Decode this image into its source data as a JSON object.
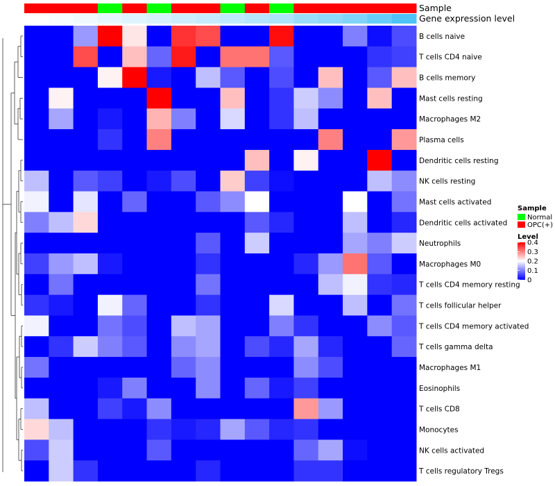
{
  "chart_data": {
    "type": "heatmap",
    "title": "",
    "annotation_tracks": [
      {
        "label": "Sample",
        "values": [
          "OPC(+)",
          "OPC(+)",
          "OPC(+)",
          "Normal",
          "OPC(+)",
          "Normal",
          "OPC(+)",
          "OPC(+)",
          "Normal",
          "OPC(+)",
          "Normal",
          "OPC(+)",
          "OPC(+)",
          "OPC(+)",
          "OPC(+)",
          "OPC(+)"
        ]
      },
      {
        "label": "Gene expression level",
        "values": [
          0.0,
          0.03,
          0.06,
          0.1,
          0.13,
          0.16,
          0.2,
          0.23,
          0.26,
          0.3,
          0.33,
          0.4,
          0.45,
          0.5,
          0.6,
          0.7
        ]
      }
    ],
    "rows": [
      "B cells naive",
      "T cells CD4 naive",
      "B cells memory",
      "Mast cells resting",
      "Macrophages M2",
      "Plasma cells",
      "Dendritic cells resting",
      "NK cells resting",
      "Mast cells activated",
      "Dendritic cells activated",
      "Neutrophils",
      "Macrophages M0",
      "T cells CD4 memory resting",
      "T cells follicular helper",
      "T cells CD4 memory activated",
      "T cells gamma delta",
      "Macrophages M1",
      "Eosinophils",
      "T cells CD8",
      "Monocytes",
      "NK cells activated",
      "T cells regulatory  Tregs"
    ],
    "values": [
      [
        0.0,
        0.0,
        0.12,
        0.4,
        0.22,
        0.0,
        0.36,
        0.34,
        0.0,
        0.0,
        0.39,
        0.0,
        0.0,
        0.1,
        0.01,
        0.06
      ],
      [
        0.0,
        0.0,
        0.34,
        0.0,
        0.25,
        0.08,
        0.38,
        0.0,
        0.31,
        0.31,
        0.07,
        0.0,
        0.0,
        0.0,
        0.04,
        0.05
      ],
      [
        0.0,
        0.0,
        0.0,
        0.21,
        0.4,
        0.02,
        0.0,
        0.15,
        0.07,
        0.0,
        0.06,
        0.0,
        0.25,
        0.0,
        0.07,
        0.25
      ],
      [
        0.0,
        0.21,
        0.0,
        0.0,
        0.0,
        0.4,
        0.0,
        0.0,
        0.25,
        0.0,
        0.04,
        0.16,
        0.11,
        0.0,
        0.25,
        0.0
      ],
      [
        0.0,
        0.13,
        0.0,
        0.02,
        0.0,
        0.26,
        0.1,
        0.0,
        0.17,
        0.0,
        0.04,
        0.15,
        0.0,
        0.0,
        0.0,
        0.0
      ],
      [
        0.0,
        0.0,
        0.0,
        0.04,
        0.0,
        0.3,
        0.0,
        0.0,
        0.0,
        0.0,
        0.0,
        0.0,
        0.3,
        0.0,
        0.0,
        0.28
      ],
      [
        0.0,
        0.0,
        0.0,
        0.0,
        0.0,
        0.0,
        0.0,
        0.0,
        0.0,
        0.25,
        0.0,
        0.21,
        0.0,
        0.0,
        0.4,
        0.0
      ],
      [
        0.15,
        0.0,
        0.07,
        0.05,
        0.0,
        0.02,
        0.06,
        0.0,
        0.24,
        0.05,
        0.01,
        0.0,
        0.0,
        0.0,
        0.15,
        0.11
      ],
      [
        0.19,
        0.0,
        0.18,
        0.0,
        0.08,
        0.0,
        0.0,
        0.07,
        0.11,
        0.2,
        0.0,
        0.0,
        0.0,
        0.2,
        0.0,
        0.09
      ],
      [
        0.1,
        0.15,
        0.23,
        0.0,
        0.0,
        0.0,
        0.0,
        0.0,
        0.0,
        0.07,
        0.03,
        0.0,
        0.0,
        0.15,
        0.0,
        0.03
      ],
      [
        0.0,
        0.0,
        0.0,
        0.0,
        0.0,
        0.0,
        0.0,
        0.07,
        0.0,
        0.16,
        0.0,
        0.0,
        0.0,
        0.13,
        0.1,
        0.16
      ],
      [
        0.05,
        0.12,
        0.15,
        0.02,
        0.0,
        0.0,
        0.0,
        0.04,
        0.0,
        0.0,
        0.0,
        0.03,
        0.12,
        0.31,
        0.07,
        0.0
      ],
      [
        0.0,
        0.09,
        0.0,
        0.0,
        0.0,
        0.0,
        0.0,
        0.09,
        0.0,
        0.0,
        0.0,
        0.0,
        0.15,
        0.19,
        0.04,
        0.03
      ],
      [
        0.04,
        0.02,
        0.0,
        0.19,
        0.08,
        0.0,
        0.0,
        0.04,
        0.0,
        0.0,
        0.17,
        0.0,
        0.0,
        0.15,
        0.0,
        0.09
      ],
      [
        0.19,
        0.0,
        0.0,
        0.09,
        0.06,
        0.0,
        0.15,
        0.13,
        0.0,
        0.0,
        0.1,
        0.04,
        0.0,
        0.0,
        0.11,
        0.07
      ],
      [
        0.0,
        0.04,
        0.16,
        0.1,
        0.07,
        0.0,
        0.11,
        0.13,
        0.0,
        0.06,
        0.03,
        0.13,
        0.03,
        0.0,
        0.0,
        0.08
      ],
      [
        0.09,
        0.0,
        0.0,
        0.0,
        0.0,
        0.0,
        0.08,
        0.11,
        0.0,
        0.0,
        0.0,
        0.11,
        0.06,
        0.0,
        0.0,
        0.0
      ],
      [
        0.0,
        0.0,
        0.0,
        0.02,
        0.1,
        0.0,
        0.0,
        0.11,
        0.0,
        0.08,
        0.02,
        0.05,
        0.0,
        0.0,
        0.0,
        0.0
      ],
      [
        0.15,
        0.0,
        0.0,
        0.05,
        0.02,
        0.11,
        0.0,
        0.0,
        0.0,
        0.0,
        0.0,
        0.28,
        0.12,
        0.0,
        0.0,
        0.0
      ],
      [
        0.23,
        0.15,
        0.0,
        0.0,
        0.0,
        0.04,
        0.02,
        0.03,
        0.13,
        0.07,
        0.03,
        0.04,
        0.0,
        0.0,
        0.0,
        0.0
      ],
      [
        0.06,
        0.16,
        0.0,
        0.0,
        0.0,
        0.07,
        0.0,
        0.0,
        0.0,
        0.0,
        0.0,
        0.08,
        0.13,
        0.01,
        0.0,
        0.0
      ],
      [
        0.0,
        0.16,
        0.04,
        0.0,
        0.0,
        0.0,
        0.0,
        0.03,
        0.0,
        0.0,
        0.0,
        0.04,
        0.04,
        0.0,
        0.0,
        0.0
      ]
    ],
    "legend": {
      "sample_title": "Sample",
      "sample_entries": [
        {
          "label": "Normal",
          "color": "#00ff00"
        },
        {
          "label": "OPC(+)",
          "color": "#ff0000"
        }
      ],
      "level_title": "Level",
      "level_ticks": [
        "0.4",
        "0.3",
        "0.2",
        "0.1",
        "0"
      ],
      "level_tick_values": [
        0.4,
        0.3,
        0.2,
        0.1,
        0.0
      ],
      "placement": "right"
    },
    "colors": {
      "low": "#0000ff",
      "mid": "#ffffff",
      "high": "#ff0000",
      "normal": "#00ff00",
      "opc": "#ff0000",
      "expr_low": "#ffffff",
      "expr_high": "#4fc3f7"
    },
    "value_range": [
      0,
      0.4
    ],
    "mid_value": 0.2
  }
}
